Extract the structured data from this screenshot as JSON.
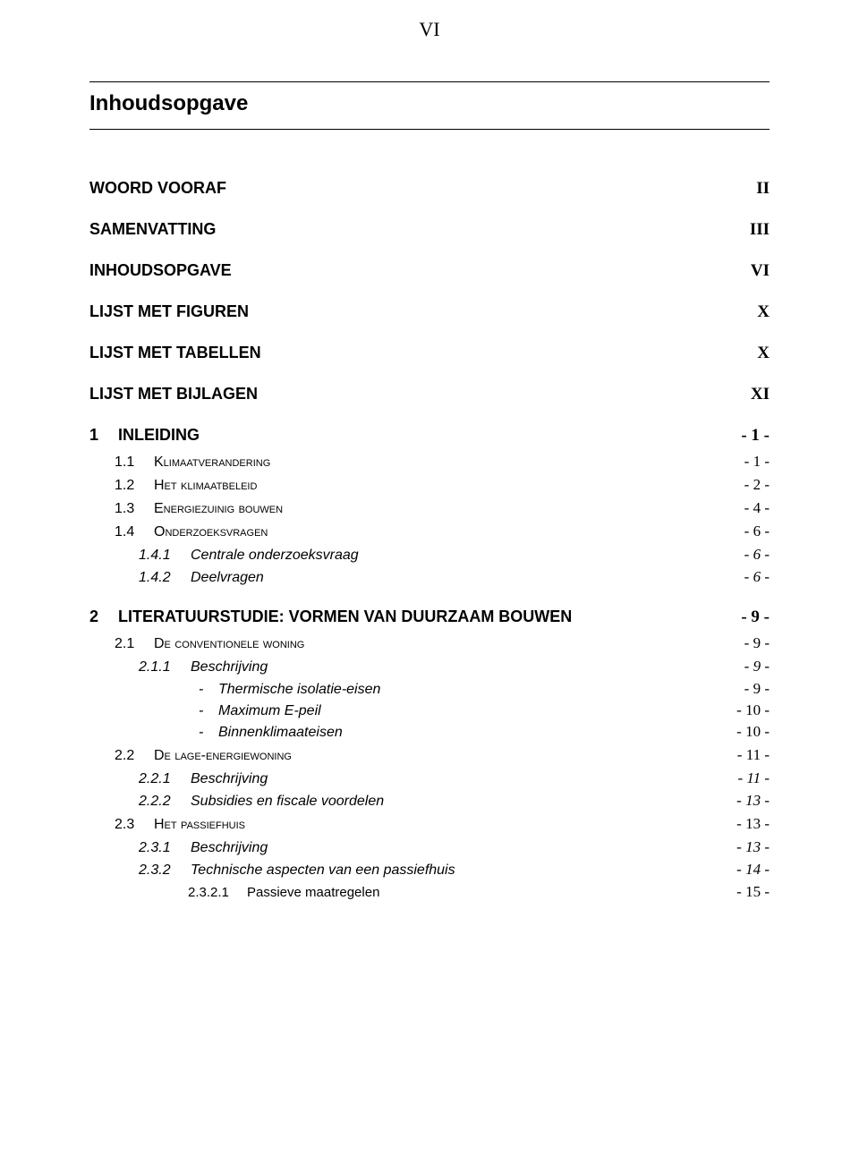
{
  "page_roman": "VI",
  "main_title": "Inhoudsopgave",
  "front_matter": [
    {
      "label": "WOORD VOORAF",
      "page": "II"
    },
    {
      "label": "SAMENVATTING",
      "page": "III"
    },
    {
      "label": "INHOUDSOPGAVE",
      "page": "VI"
    },
    {
      "label": "LIJST MET FIGUREN",
      "page": "X"
    },
    {
      "label": "LIJST MET TABELLEN",
      "page": "X"
    },
    {
      "label": "LIJST MET BIJLAGEN",
      "page": "XI"
    }
  ],
  "ch1": {
    "num": "1",
    "title": "INLEIDING",
    "page": "- 1 -",
    "s1": {
      "num": "1.1",
      "title": "Klimaatverandering",
      "page": "- 1 -"
    },
    "s2": {
      "num": "1.2",
      "title": "Het klimaatbeleid",
      "page": "- 2 -"
    },
    "s3": {
      "num": "1.3",
      "title": "Energiezuinig bouwen",
      "page": "- 4 -"
    },
    "s4": {
      "num": "1.4",
      "title": "Onderzoeksvragen",
      "page": "- 6 -",
      "ss1": {
        "num": "1.4.1",
        "title": "Centrale onderzoeksvraag",
        "page": "- 6 -"
      },
      "ss2": {
        "num": "1.4.2",
        "title": "Deelvragen",
        "page": "- 6 -"
      }
    }
  },
  "ch2": {
    "num": "2",
    "title": "LITERATUURSTUDIE: VORMEN VAN DUURZAAM BOUWEN",
    "page": "- 9 -",
    "s1": {
      "num": "2.1",
      "title": "De conventionele woning",
      "page": "- 9 -",
      "ss1": {
        "num": "2.1.1",
        "title": "Beschrijving",
        "page": "- 9 -",
        "b1": {
          "dash": "-",
          "title": "Thermische isolatie-eisen",
          "page": "- 9 -"
        },
        "b2": {
          "dash": "-",
          "title": "Maximum E-peil",
          "page": "- 10 -"
        },
        "b3": {
          "dash": "-",
          "title": "Binnenklimaateisen",
          "page": "- 10 -"
        }
      }
    },
    "s2": {
      "num": "2.2",
      "title": "De lage-energiewoning",
      "page": "- 11 -",
      "ss1": {
        "num": "2.2.1",
        "title": "Beschrijving",
        "page": "- 11 -"
      },
      "ss2": {
        "num": "2.2.2",
        "title": "Subsidies en fiscale voordelen",
        "page": "- 13 -"
      }
    },
    "s3": {
      "num": "2.3",
      "title": "Het passiefhuis",
      "page": "- 13 -",
      "ss1": {
        "num": "2.3.1",
        "title": "Beschrijving",
        "page": "- 13 -"
      },
      "ss2": {
        "num": "2.3.2",
        "title": "Technische aspecten van een passiefhuis",
        "page": "- 14 -",
        "p1": {
          "num": "2.3.2.1",
          "title": "Passieve maatregelen",
          "page": "- 15 -"
        }
      }
    }
  }
}
